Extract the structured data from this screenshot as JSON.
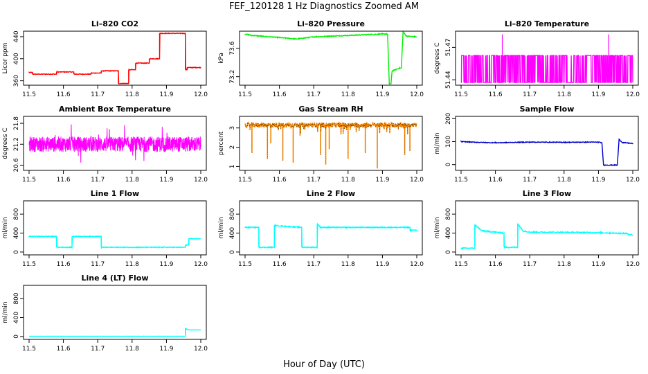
{
  "figure": {
    "title": "FEF_120128  1 Hz Diagnostics Zoomed AM",
    "xlabel": "Hour of Day (UTC)"
  },
  "chart_data": [
    {
      "type": "line",
      "title": "Li–820 CO2",
      "ylabel": "Licor ppm",
      "color": "#ff0000",
      "xlim": [
        11.5,
        12.0
      ],
      "ylim": [
        352,
        450
      ],
      "xticks": [
        "11.5",
        "11.6",
        "11.7",
        "11.8",
        "11.9",
        "12.0"
      ],
      "yticks": [
        360,
        400,
        440
      ],
      "style": "step",
      "noise": 0.6,
      "x": [
        11.5,
        11.51,
        11.51,
        11.58,
        11.58,
        11.63,
        11.63,
        11.68,
        11.68,
        11.71,
        11.71,
        11.76,
        11.76,
        11.79,
        11.79,
        11.81,
        11.81,
        11.85,
        11.85,
        11.88,
        11.88,
        11.955,
        11.955,
        11.96,
        11.96,
        12.0
      ],
      "y": [
        375,
        375,
        372,
        372,
        376,
        376,
        372,
        372,
        374,
        374,
        378,
        378,
        355,
        355,
        380,
        380,
        392,
        392,
        400,
        400,
        446,
        446,
        380,
        380,
        384,
        384
      ]
    },
    {
      "type": "line",
      "title": "Li–820 Pressure",
      "ylabel": "kPa",
      "color": "#00ee00",
      "xlim": [
        11.5,
        12.0
      ],
      "ylim": [
        73.08,
        73.84
      ],
      "xticks": [
        "11.5",
        "11.6",
        "11.7",
        "11.8",
        "11.9",
        "12.0"
      ],
      "yticks": [
        73.2,
        73.6
      ],
      "style": "line",
      "noise": 0.006,
      "x": [
        11.5,
        11.52,
        11.6,
        11.65,
        11.7,
        11.8,
        11.9,
        11.915,
        11.92,
        11.925,
        11.928,
        11.95,
        11.955,
        11.96,
        11.97,
        12.0
      ],
      "y": [
        73.8,
        73.78,
        73.75,
        73.73,
        73.76,
        73.78,
        73.8,
        73.8,
        73.1,
        73.1,
        73.28,
        73.32,
        73.32,
        73.83,
        73.77,
        73.76
      ]
    },
    {
      "type": "line",
      "title": "Li–820 Temperature",
      "ylabel": "degrees C",
      "color": "#ff00ff",
      "xlim": [
        11.5,
        12.0
      ],
      "ylim": [
        51.435,
        51.485
      ],
      "xticks": [
        "11.5",
        "11.6",
        "11.7",
        "11.8",
        "11.9",
        "12.0"
      ],
      "yticks": [
        51.44,
        51.47
      ],
      "style": "binary",
      "levels": [
        51.4375,
        51.4625
      ],
      "spikes_x": [
        11.62,
        11.93
      ],
      "spikes_y": 51.482,
      "x": [
        11.5,
        12.0
      ],
      "y": [
        51.4375,
        51.4625
      ]
    },
    {
      "type": "line",
      "title": "Ambient Box Temperature",
      "ylabel": "degrees C",
      "color": "#ff00ff",
      "xlim": [
        11.5,
        12.0
      ],
      "ylim": [
        20.45,
        22.0
      ],
      "xticks": [
        "11.5",
        "11.6",
        "11.7",
        "11.8",
        "11.9",
        "12.0"
      ],
      "yticks": [
        20.6,
        21.2,
        21.8
      ],
      "style": "noisy",
      "base": 21.2,
      "noise": 0.22,
      "spike": 0.6,
      "x": [
        11.5,
        12.0
      ],
      "y": [
        21.2,
        21.2
      ]
    },
    {
      "type": "line",
      "title": "Gas Stream RH",
      "ylabel": "percent",
      "color": "#ff8c00",
      "xlim": [
        11.5,
        12.0
      ],
      "ylim": [
        0.8,
        3.6
      ],
      "xticks": [
        "11.5",
        "11.6",
        "11.7",
        "11.8",
        "11.9",
        "12.0"
      ],
      "yticks": [
        1.0,
        2.0,
        3.0
      ],
      "style": "dips",
      "base": 3.15,
      "noise": 0.12,
      "dipcolor": "#000000",
      "x": [
        11.5,
        12.0
      ],
      "y": [
        3.15,
        3.15
      ],
      "dips_x": [
        11.52,
        11.565,
        11.575,
        11.61,
        11.64,
        11.66,
        11.72,
        11.735,
        11.745,
        11.8,
        11.85,
        11.885,
        11.965,
        11.98
      ],
      "dips_y": [
        1.7,
        1.4,
        2.2,
        1.3,
        1.2,
        2.6,
        1.6,
        1.1,
        1.9,
        1.4,
        1.7,
        0.9,
        1.6,
        1.8
      ]
    },
    {
      "type": "line",
      "title": "Sample Flow",
      "ylabel": "ml/min",
      "color": "#0000cc",
      "xlim": [
        11.5,
        12.0
      ],
      "ylim": [
        -25,
        210
      ],
      "xticks": [
        "11.5",
        "11.6",
        "11.7",
        "11.8",
        "11.9",
        "12.0"
      ],
      "yticks": [
        0,
        100,
        200
      ],
      "style": "line",
      "noise": 1.5,
      "x": [
        11.5,
        11.55,
        11.6,
        11.7,
        11.8,
        11.9,
        11.91,
        11.915,
        11.955,
        11.96,
        11.97,
        12.0
      ],
      "y": [
        100,
        97,
        95,
        98,
        97,
        98,
        95,
        -2,
        -2,
        110,
        96,
        92
      ]
    },
    {
      "type": "line",
      "title": "Line 1 Flow",
      "ylabel": "ml/min",
      "color": "#00ffff",
      "xlim": [
        11.5,
        12.0
      ],
      "ylim": [
        -60,
        1080
      ],
      "xticks": [
        "11.5",
        "11.6",
        "11.7",
        "11.8",
        "11.9",
        "12.0"
      ],
      "yticks": [
        0,
        400,
        800
      ],
      "style": "step",
      "noise": 8,
      "x": [
        11.5,
        11.58,
        11.58,
        11.625,
        11.625,
        11.71,
        11.71,
        11.955,
        11.955,
        11.965,
        11.965,
        12.0
      ],
      "y": [
        330,
        330,
        100,
        100,
        330,
        330,
        100,
        100,
        150,
        150,
        280,
        280
      ]
    },
    {
      "type": "line",
      "title": "Line 2 Flow",
      "ylabel": "ml/min",
      "color": "#00ffff",
      "xlim": [
        11.5,
        12.0
      ],
      "ylim": [
        -60,
        1080
      ],
      "xticks": [
        "11.5",
        "11.6",
        "11.7",
        "11.8",
        "11.9",
        "12.0"
      ],
      "yticks": [
        0,
        400,
        800
      ],
      "style": "step",
      "noise": 10,
      "x": [
        11.5,
        11.54,
        11.54,
        11.585,
        11.585,
        11.665,
        11.665,
        11.71,
        11.71,
        11.72,
        11.98,
        11.98,
        12.0
      ],
      "y": [
        520,
        520,
        100,
        100,
        560,
        520,
        100,
        100,
        600,
        520,
        520,
        460,
        460
      ]
    },
    {
      "type": "line",
      "title": "Line 3 Flow",
      "ylabel": "ml/min",
      "color": "#00ffff",
      "xlim": [
        11.5,
        12.0
      ],
      "ylim": [
        -60,
        1080
      ],
      "xticks": [
        "11.5",
        "11.6",
        "11.7",
        "11.8",
        "11.9",
        "12.0"
      ],
      "yticks": [
        0,
        400,
        800
      ],
      "style": "step",
      "noise": 12,
      "x": [
        11.5,
        11.54,
        11.54,
        11.56,
        11.625,
        11.625,
        11.665,
        11.665,
        11.68,
        11.7,
        11.9,
        11.98,
        12.0
      ],
      "y": [
        80,
        80,
        580,
        450,
        400,
        100,
        100,
        600,
        450,
        420,
        410,
        390,
        360
      ]
    },
    {
      "type": "line",
      "title": "Line 4 (LT) Flow",
      "ylabel": "ml/min",
      "color": "#00ffff",
      "xlim": [
        11.5,
        12.0
      ],
      "ylim": [
        -60,
        1080
      ],
      "xticks": [
        "11.5",
        "11.6",
        "11.7",
        "11.8",
        "11.9",
        "12.0"
      ],
      "yticks": [
        0,
        400,
        800
      ],
      "style": "step",
      "noise": 2,
      "x": [
        11.5,
        11.955,
        11.955,
        11.96,
        11.965,
        12.0
      ],
      "y": [
        5,
        5,
        180,
        150,
        140,
        140
      ]
    }
  ]
}
